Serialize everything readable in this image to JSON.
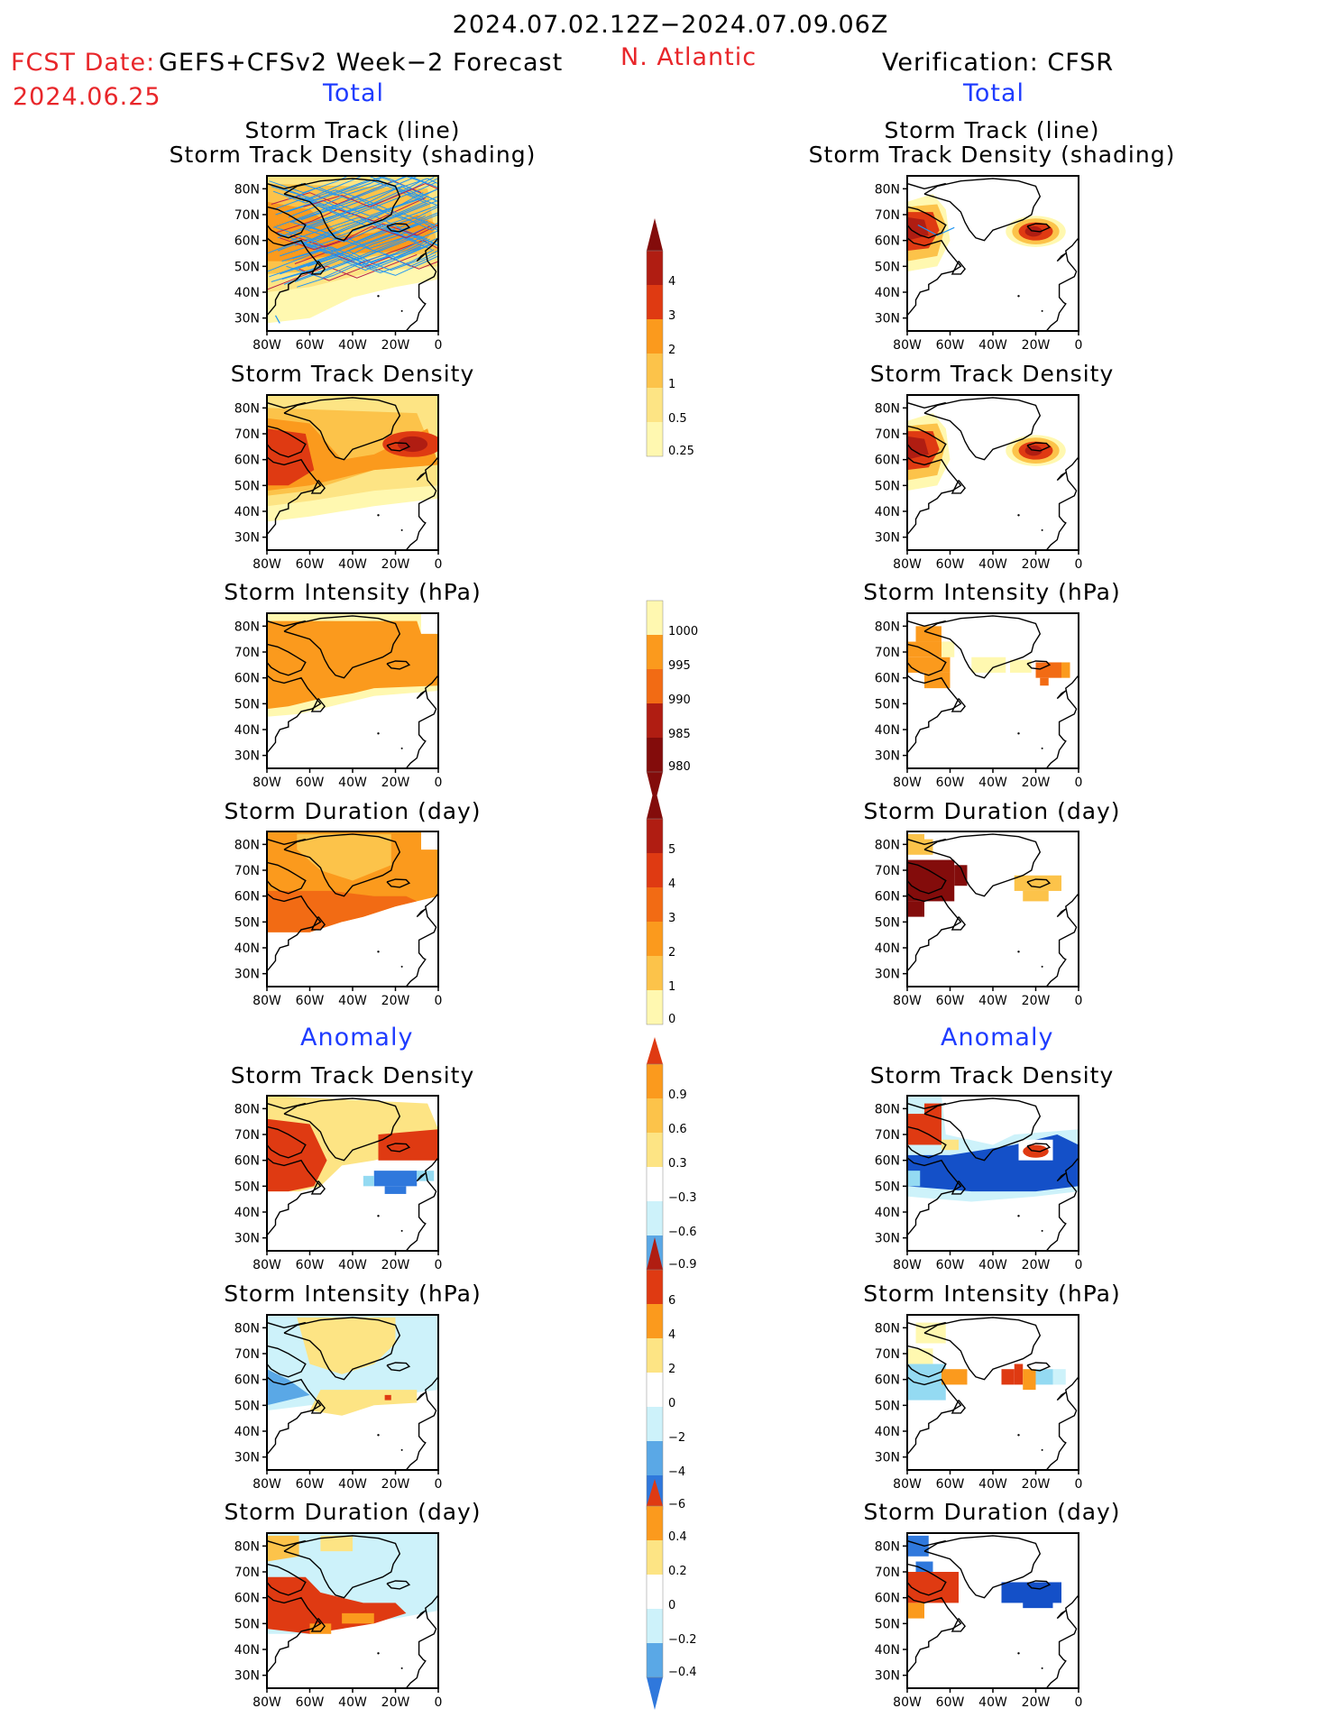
{
  "header": {
    "date_range": "2024.07.02.12Z−2024.07.09.06Z",
    "fcst_label": "FCST Date:",
    "fcst_desc": "GEFS+CFSv2 Week−2 Forecast",
    "fcst_date": "2024.06.25",
    "region": "N. Atlantic",
    "verification": "Verification: CFSR"
  },
  "section_labels": {
    "total": "Total",
    "anomaly": "Anomaly"
  },
  "panel_titles": {
    "track_line": "Storm Track (line)",
    "track_shading": "Storm Track Density (shading)",
    "density": "Storm Track Density",
    "intensity": "Storm Intensity (hPa)",
    "duration": "Storm Duration (day)"
  },
  "axes": {
    "lat_ticks": [
      "80N",
      "70N",
      "60N",
      "50N",
      "40N",
      "30N"
    ],
    "lon_ticks": [
      "80W",
      "60W",
      "40W",
      "20W",
      "0"
    ]
  },
  "colorbars": {
    "track_density_total": [
      "4",
      "3",
      "2",
      "1",
      "0.5",
      "0.25"
    ],
    "intensity_total": [
      "1000",
      "995",
      "990",
      "985",
      "980"
    ],
    "duration_total": [
      "5",
      "4",
      "3",
      "2",
      "1",
      "0"
    ],
    "track_density_anom": [
      "0.9",
      "0.6",
      "0.3",
      "−0.3",
      "−0.6",
      "−0.9"
    ],
    "intensity_anom": [
      "6",
      "4",
      "2",
      "0",
      "−2",
      "−4",
      "−6"
    ],
    "duration_anom": [
      "0.4",
      "0.2",
      "0",
      "−0.2",
      "−0.4"
    ]
  },
  "colors": {
    "warm": [
      "#fff8b0",
      "#fde484",
      "#fcc34a",
      "#fb9a1d",
      "#f26b14",
      "#df3a12",
      "#b01d12",
      "#830c0b"
    ],
    "cool": [
      "#cdf2fa",
      "#94daf2",
      "#5aa8e6",
      "#2f78dc",
      "#1450c8"
    ],
    "track_line": "#2196f3",
    "track_dark": "#b8204a"
  }
}
